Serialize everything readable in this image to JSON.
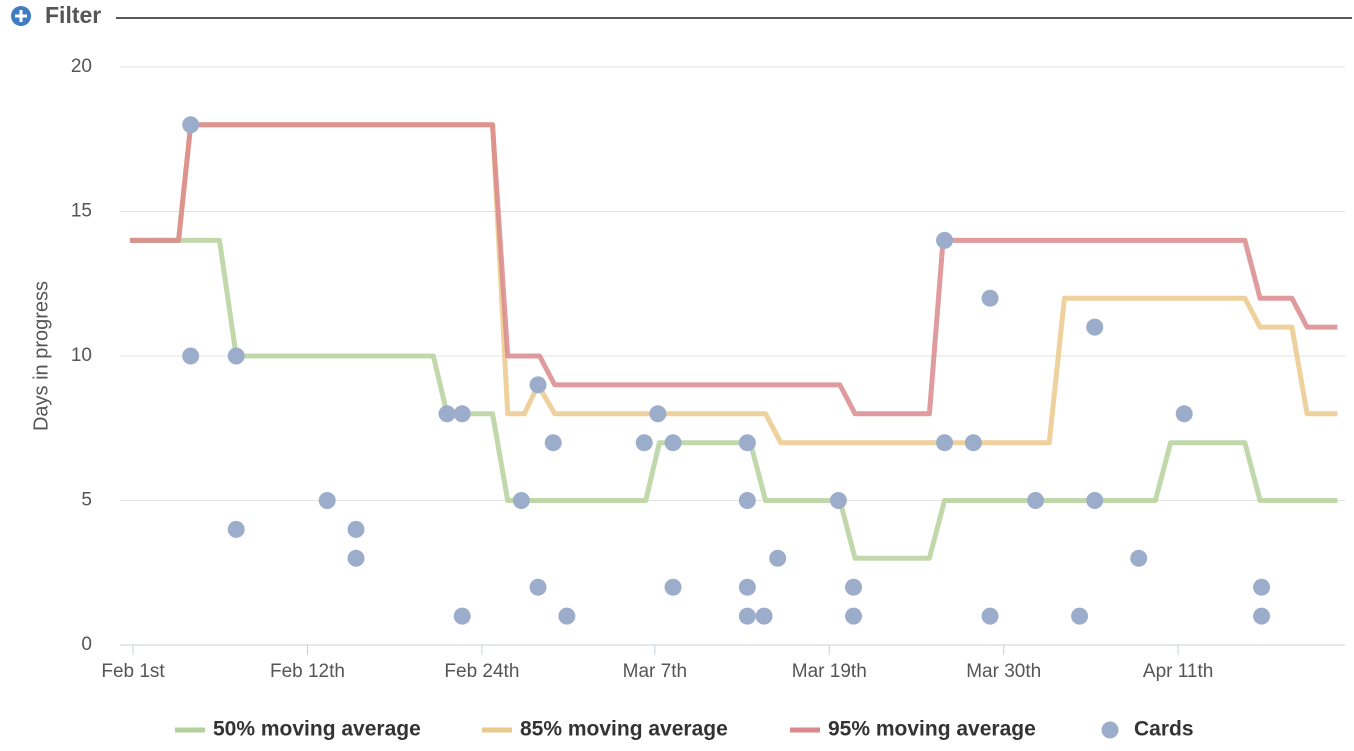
{
  "header": {
    "title": "Filter"
  },
  "chart_data": {
    "type": "line",
    "y_label": "Days in progress",
    "xlim": [
      -0.86,
      79.9
    ],
    "xticks": [
      {
        "value": 0,
        "label": "Feb 1st"
      },
      {
        "value": 11.5,
        "label": "Feb 12th"
      },
      {
        "value": 23,
        "label": "Feb 24th"
      },
      {
        "value": 34.4,
        "label": "Mar 7th"
      },
      {
        "value": 45.9,
        "label": "Mar 19th"
      },
      {
        "value": 57.4,
        "label": "Mar 30th"
      },
      {
        "value": 68.9,
        "label": "Apr 11th"
      }
    ],
    "ylim": [
      0,
      20
    ],
    "yticks": [
      0,
      5,
      10,
      15,
      20
    ],
    "grid": true,
    "legend": "bottom",
    "series": [
      {
        "name": "85% moving average",
        "color": "#ebc98c",
        "type": "line",
        "x": [
          -0.2,
          3.0,
          3.8,
          23.7,
          24.7,
          25.8,
          26.7,
          27.8,
          41.7,
          42.7,
          60.4,
          61.4,
          73.3,
          74.3,
          76.4,
          77.4,
          79.4
        ],
        "values": [
          14,
          14,
          18,
          18,
          8,
          8,
          9,
          8,
          8,
          7,
          7,
          12,
          12,
          11,
          11,
          8,
          8
        ]
      },
      {
        "name": "50% moving average",
        "color": "#b5d19b",
        "type": "line",
        "x": [
          -0.2,
          5.7,
          6.8,
          19.8,
          20.7,
          23.7,
          24.7,
          33.8,
          34.7,
          40.7,
          41.7,
          46.6,
          47.6,
          52.5,
          53.5,
          67.4,
          68.4,
          73.3,
          74.3,
          79.4
        ],
        "values": [
          14,
          14,
          10,
          10,
          8,
          8,
          5,
          5,
          7,
          7,
          5,
          5,
          3,
          3,
          5,
          5,
          7,
          7,
          5,
          5
        ]
      },
      {
        "name": "95% moving average",
        "color": "#d98a8c",
        "type": "line",
        "x": [
          -0.2,
          3.0,
          3.8,
          23.7,
          24.7,
          26.8,
          27.8,
          46.6,
          47.6,
          52.5,
          53.4,
          73.3,
          74.3,
          76.4,
          77.4,
          79.4
        ],
        "values": [
          14,
          14,
          18,
          18,
          10,
          10,
          9,
          9,
          8,
          8,
          14,
          14,
          12,
          12,
          11,
          11
        ]
      },
      {
        "name": "Cards",
        "color": "#9cadcc",
        "type": "scatter",
        "x": [
          3.8,
          3.8,
          6.8,
          6.8,
          12.8,
          14.7,
          14.7,
          20.7,
          21.7,
          21.7,
          25.6,
          26.7,
          26.7,
          27.7,
          28.6,
          33.7,
          34.6,
          35.6,
          35.6,
          40.5,
          40.5,
          40.5,
          40.5,
          41.6,
          42.5,
          46.5,
          47.5,
          47.5,
          53.5,
          53.5,
          55.4,
          56.5,
          56.5,
          59.5,
          62.4,
          63.4,
          63.4,
          66.3,
          69.3,
          74.4,
          74.4
        ],
        "values": [
          18,
          10,
          10,
          4,
          5,
          4,
          3,
          8,
          8,
          1,
          5,
          9,
          2,
          7,
          1,
          7,
          8,
          7,
          2,
          7,
          5,
          2,
          1,
          1,
          3,
          5,
          2,
          1,
          14,
          7,
          7,
          12,
          1,
          5,
          1,
          11,
          5,
          3,
          8,
          2,
          1
        ]
      }
    ]
  }
}
